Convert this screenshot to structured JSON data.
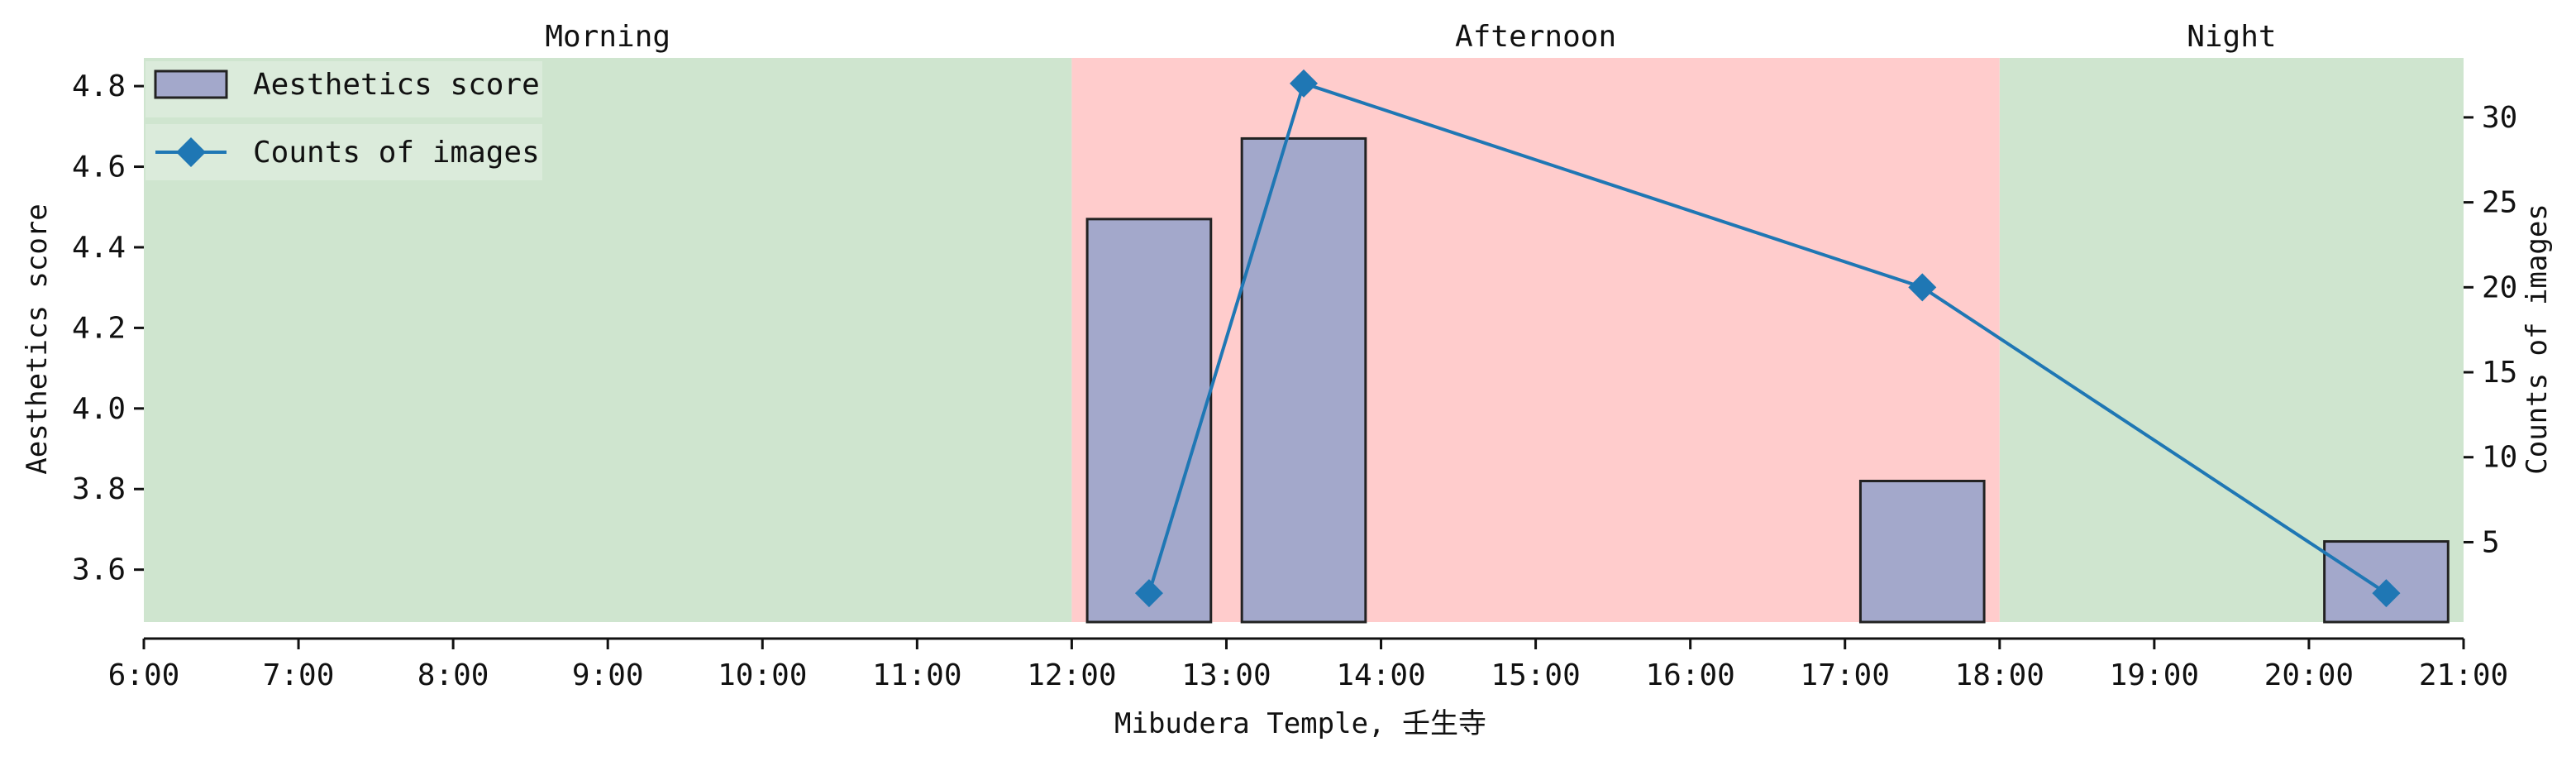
{
  "chart_data": {
    "type": "bar",
    "title": "",
    "xlabel": "Mibudera Temple, 壬生寺",
    "ylabel": "Aesthetics score",
    "y2label": "Counts of images",
    "xlim": [
      6,
      21
    ],
    "ylim": [
      3.47,
      4.87
    ],
    "y2lim": [
      0.3,
      33.5
    ],
    "x_ticks": [
      6,
      7,
      8,
      9,
      10,
      11,
      12,
      13,
      14,
      15,
      16,
      17,
      18,
      19,
      20,
      21
    ],
    "x_tick_labels": [
      "6:00",
      "7:00",
      "8:00",
      "9:00",
      "10:00",
      "11:00",
      "12:00",
      "13:00",
      "14:00",
      "15:00",
      "16:00",
      "17:00",
      "18:00",
      "19:00",
      "20:00",
      "21:00"
    ],
    "y_ticks": [
      3.6,
      3.8,
      4.0,
      4.2,
      4.4,
      4.6,
      4.8
    ],
    "y_tick_labels": [
      "3.6",
      "3.8",
      "4.0",
      "4.2",
      "4.4",
      "4.6",
      "4.8"
    ],
    "y2_ticks": [
      5,
      10,
      15,
      20,
      25,
      30
    ],
    "y2_tick_labels": [
      "5",
      "10",
      "15",
      "20",
      "25",
      "30"
    ],
    "periods": [
      {
        "label": "Morning",
        "start": 6,
        "end": 12,
        "color": "#cfe5cf"
      },
      {
        "label": "Afternoon",
        "start": 12,
        "end": 18,
        "color": "#ffcccc"
      },
      {
        "label": "Night",
        "start": 18,
        "end": 21,
        "color": "#cfe5cf"
      }
    ],
    "series": [
      {
        "name": "Aesthetics score",
        "kind": "bar",
        "axis": "left",
        "color": "#a3a8cb",
        "edgecolor": "#222222",
        "x": [
          12.5,
          13.5,
          17.5,
          20.5
        ],
        "values": [
          4.47,
          4.67,
          3.82,
          3.67
        ]
      },
      {
        "name": "Counts of images",
        "kind": "line",
        "axis": "right",
        "color": "#1f77b4",
        "marker": "diamond",
        "x": [
          12.5,
          13.5,
          17.5,
          20.5
        ],
        "values": [
          2,
          32,
          20,
          2
        ]
      }
    ],
    "legend_position": "top-left",
    "grid": false
  }
}
